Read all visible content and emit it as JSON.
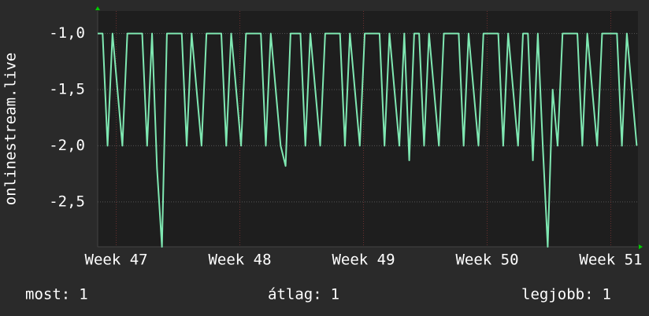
{
  "chart_data": {
    "type": "line",
    "y_label": "onlinestream.live",
    "xlim": [
      46.85,
      51.22
    ],
    "xticks": [
      {
        "value": 47,
        "label": "Week 47"
      },
      {
        "value": 48,
        "label": "Week 48"
      },
      {
        "value": 49,
        "label": "Week 49"
      },
      {
        "value": 50,
        "label": "Week 50"
      },
      {
        "value": 51,
        "label": "Week 51"
      }
    ],
    "ylim": [
      -2.9,
      -0.8
    ],
    "yticks": [
      {
        "value": -1,
        "label": "-1,0"
      },
      {
        "value": -1.5,
        "label": "-1,5"
      },
      {
        "value": -2,
        "label": "-2,0"
      },
      {
        "value": -2.5,
        "label": "-2,5"
      }
    ],
    "grid": true,
    "x": [
      46.85,
      46.89,
      46.93,
      46.97,
      47.01,
      47.05,
      47.09,
      47.13,
      47.17,
      47.21,
      47.25,
      47.29,
      47.33,
      47.37,
      47.41,
      47.45,
      47.49,
      47.53,
      47.57,
      47.61,
      47.65,
      47.69,
      47.73,
      47.77,
      47.81,
      47.85,
      47.89,
      47.93,
      47.97,
      48.01,
      48.05,
      48.09,
      48.13,
      48.17,
      48.21,
      48.25,
      48.29,
      48.33,
      48.37,
      48.41,
      48.45,
      48.49,
      48.53,
      48.57,
      48.61,
      48.65,
      48.69,
      48.73,
      48.77,
      48.81,
      48.85,
      48.89,
      48.93,
      48.97,
      49.01,
      49.05,
      49.09,
      49.13,
      49.17,
      49.21,
      49.25,
      49.29,
      49.33,
      49.37,
      49.41,
      49.45,
      49.49,
      49.53,
      49.57,
      49.61,
      49.65,
      49.69,
      49.73,
      49.77,
      49.81,
      49.85,
      49.89,
      49.93,
      49.97,
      50.01,
      50.05,
      50.09,
      50.13,
      50.17,
      50.21,
      50.25,
      50.29,
      50.33,
      50.37,
      50.41,
      50.45,
      50.49,
      50.53,
      50.57,
      50.61,
      50.65,
      50.69,
      50.73,
      50.77,
      50.81,
      50.85,
      50.89,
      50.93,
      50.97,
      51.01,
      51.05,
      51.09,
      51.13,
      51.17,
      51.21
    ],
    "series": [
      {
        "color": "#7fe8b2",
        "values": [
          -1,
          -1,
          -2,
          -1,
          -1.5,
          -2,
          -1,
          -1,
          -1,
          -1,
          -2,
          -1,
          -2.2,
          -2.9,
          -1,
          -1,
          -1,
          -1,
          -2,
          -1,
          -1.5,
          -2,
          -1,
          -1,
          -1,
          -1,
          -2,
          -1,
          -1.5,
          -2,
          -1,
          -1,
          -1,
          -1,
          -2,
          -1,
          -1.5,
          -2,
          -2.18,
          -1,
          -1,
          -1,
          -2,
          -1,
          -1.5,
          -2,
          -1,
          -1,
          -1,
          -1,
          -2,
          -1,
          -1.5,
          -2,
          -1,
          -1,
          -1,
          -1,
          -2,
          -1,
          -1.5,
          -2,
          -1,
          -2.13,
          -1,
          -1,
          -2,
          -1,
          -1.5,
          -2,
          -1,
          -1,
          -1,
          -1,
          -2,
          -1,
          -1.5,
          -2,
          -1,
          -1,
          -1,
          -1,
          -2,
          -1,
          -1.5,
          -2,
          -1,
          -1,
          -2.13,
          -1,
          -2,
          -2.9,
          -1.5,
          -2,
          -1,
          -1,
          -1,
          -1,
          -2,
          -1,
          -1.5,
          -2,
          -1,
          -1,
          -1,
          -1,
          -2,
          -1,
          -1.5,
          -2
        ]
      }
    ],
    "stats": [
      {
        "label": "most:",
        "value": 1
      },
      {
        "label": "átlag:",
        "value": 1
      },
      {
        "label": "legjobb:",
        "value": 1
      }
    ]
  }
}
